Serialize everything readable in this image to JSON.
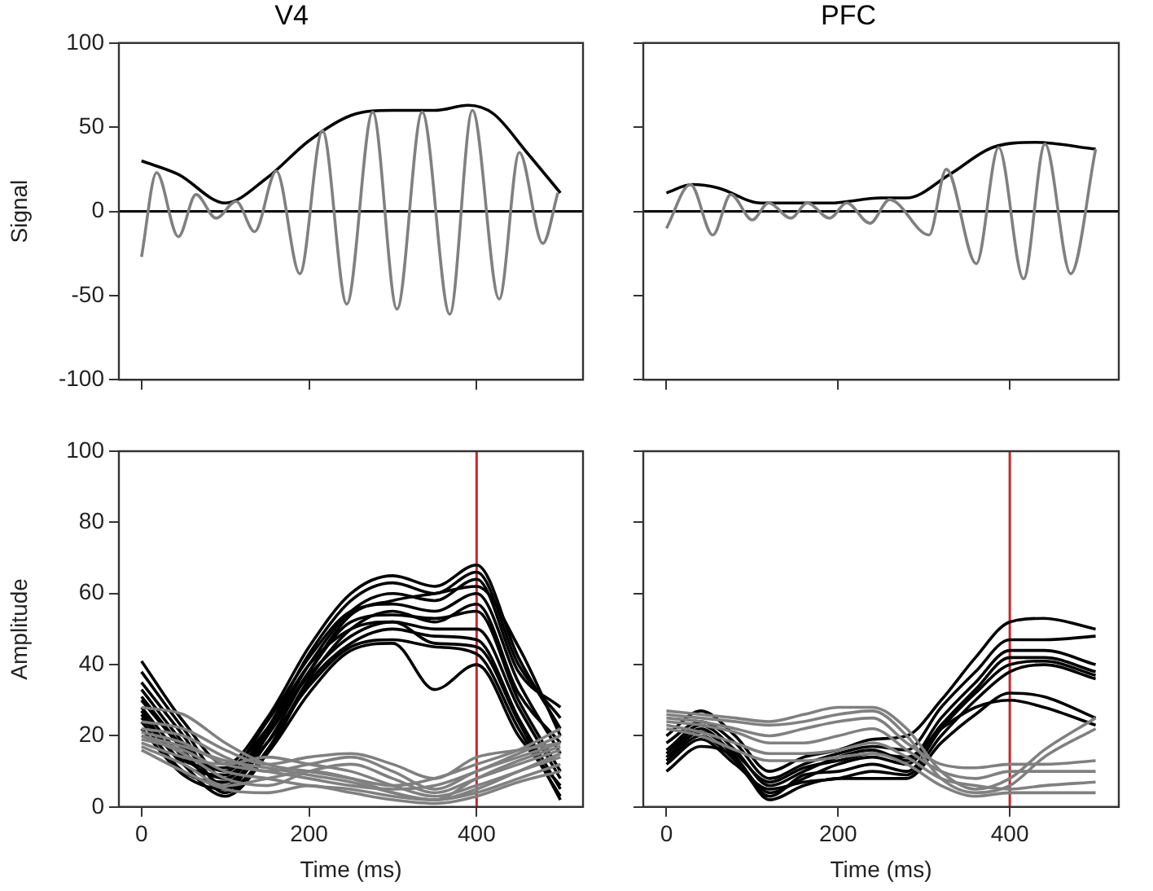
{
  "chart_data": [
    {
      "type": "line",
      "title": "V4",
      "ylabel": "Signal",
      "xlim": [
        -27,
        527
      ],
      "xticks": [
        0,
        200,
        400
      ],
      "ylim": [
        -100,
        100
      ],
      "yticks": [
        -100,
        -50,
        0,
        50,
        100
      ],
      "tick_labels": "y",
      "grid": false,
      "legend": false,
      "marker": "none",
      "line_style": "solid",
      "ref_lines": [
        {
          "axis": "y",
          "value": 0,
          "color": "#000000"
        }
      ],
      "series": [
        {
          "color": "#808080",
          "x": [
            0,
            18,
            44,
            65,
            89,
            113,
            135,
            161,
            189,
            216,
            245,
            276,
            305,
            335,
            368,
            395,
            427,
            451,
            479,
            497
          ],
          "values": [
            -27,
            23,
            -15,
            10,
            -4,
            6,
            -12,
            24,
            -37,
            48,
            -55,
            59,
            -58,
            59,
            -61,
            60,
            -52,
            35,
            -19,
            11
          ]
        },
        {
          "color": "#000000",
          "x": [
            0,
            44,
            100,
            150,
            200,
            250,
            300,
            350,
            390,
            420,
            460,
            500
          ],
          "values": [
            30,
            22,
            5,
            20,
            42,
            57,
            60,
            60,
            63,
            58,
            35,
            11
          ]
        }
      ]
    },
    {
      "type": "line",
      "title": "PFC",
      "xlim": [
        -27,
        527
      ],
      "xticks": [
        0,
        200,
        400
      ],
      "ylim": [
        -100,
        100
      ],
      "yticks": [
        -100,
        -50,
        0,
        50,
        100
      ],
      "tick_labels": false,
      "grid": false,
      "legend": false,
      "marker": "none",
      "line_style": "solid",
      "ref_lines": [
        {
          "axis": "y",
          "value": 0,
          "color": "#000000"
        }
      ],
      "series": [
        {
          "color": "#808080",
          "x": [
            0,
            28,
            54,
            75,
            100,
            119,
            145,
            164,
            190,
            210,
            237,
            260,
            306,
            326,
            361,
            387,
            416,
            441,
            471,
            500
          ],
          "values": [
            -10,
            16,
            -14,
            10,
            -5,
            5,
            -4,
            5,
            -4,
            5,
            -7,
            7,
            -14,
            25,
            -31,
            38,
            -40,
            40,
            -37,
            37
          ]
        },
        {
          "color": "#000000",
          "x": [
            0,
            30,
            60,
            110,
            190,
            250,
            280,
            330,
            380,
            430,
            500
          ],
          "values": [
            11,
            16,
            14,
            5,
            5,
            8,
            8,
            22,
            38,
            41,
            37
          ]
        }
      ]
    },
    {
      "type": "line",
      "ylabel": "Amplitude",
      "xlabel": "Time (ms)",
      "xlim": [
        -27,
        527
      ],
      "xticks": [
        0,
        200,
        400
      ],
      "ylim": [
        0,
        100
      ],
      "yticks": [
        0,
        20,
        40,
        60,
        80,
        100
      ],
      "grid": false,
      "legend": false,
      "marker": "none",
      "line_style": "solid",
      "ref_lines": [
        {
          "axis": "x",
          "value": 400,
          "color": "#c62828"
        }
      ],
      "x": [
        0,
        50,
        100,
        150,
        200,
        250,
        300,
        350,
        400,
        450,
        500
      ],
      "series": [
        {
          "color": "#808080",
          "values": [
            28,
            26,
            18,
            12,
            10,
            8,
            6,
            8,
            12,
            16,
            22
          ]
        },
        {
          "color": "#808080",
          "values": [
            22,
            20,
            14,
            10,
            12,
            14,
            10,
            5,
            10,
            14,
            18
          ]
        },
        {
          "color": "#808080",
          "values": [
            20,
            15,
            8,
            6,
            10,
            12,
            8,
            4,
            8,
            12,
            16
          ]
        },
        {
          "color": "#808080",
          "values": [
            18,
            14,
            12,
            14,
            12,
            10,
            6,
            3,
            6,
            10,
            14
          ]
        },
        {
          "color": "#808080",
          "values": [
            17,
            12,
            6,
            8,
            10,
            8,
            4,
            2,
            4,
            8,
            12
          ]
        },
        {
          "color": "#808080",
          "values": [
            19,
            16,
            10,
            8,
            6,
            5,
            3,
            2,
            5,
            10,
            15
          ]
        },
        {
          "color": "#808080",
          "values": [
            21,
            18,
            12,
            10,
            8,
            6,
            5,
            6,
            10,
            15,
            20
          ]
        },
        {
          "color": "#808080",
          "values": [
            24,
            22,
            16,
            12,
            14,
            15,
            12,
            8,
            14,
            16,
            18
          ]
        },
        {
          "color": "#808080",
          "values": [
            16,
            10,
            5,
            4,
            6,
            4,
            2,
            1,
            3,
            7,
            10
          ]
        },
        {
          "color": "#808080",
          "values": [
            20,
            17,
            13,
            11,
            9,
            7,
            4,
            2,
            8,
            13,
            17
          ]
        },
        {
          "color": "#000000",
          "values": [
            41,
            24,
            12,
            25,
            45,
            60,
            65,
            62,
            68,
            42,
            22
          ]
        },
        {
          "color": "#000000",
          "values": [
            38,
            22,
            8,
            22,
            43,
            58,
            63,
            60,
            66,
            40,
            25
          ]
        },
        {
          "color": "#000000",
          "values": [
            35,
            20,
            5,
            20,
            40,
            55,
            60,
            58,
            64,
            38,
            28
          ]
        },
        {
          "color": "#000000",
          "values": [
            33,
            18,
            6,
            18,
            38,
            54,
            58,
            60,
            62,
            45,
            20
          ]
        },
        {
          "color": "#000000",
          "values": [
            31,
            17,
            10,
            24,
            42,
            55,
            57,
            55,
            60,
            35,
            15
          ]
        },
        {
          "color": "#000000",
          "values": [
            30,
            16,
            4,
            16,
            36,
            50,
            55,
            52,
            57,
            32,
            18
          ]
        },
        {
          "color": "#000000",
          "values": [
            28,
            14,
            8,
            20,
            38,
            52,
            54,
            53,
            55,
            30,
            10
          ]
        },
        {
          "color": "#000000",
          "values": [
            27,
            12,
            9,
            21,
            37,
            48,
            52,
            50,
            50,
            28,
            8
          ]
        },
        {
          "color": "#000000",
          "values": [
            26,
            12,
            3,
            15,
            35,
            46,
            50,
            48,
            47,
            25,
            5
          ]
        },
        {
          "color": "#000000",
          "values": [
            24,
            10,
            7,
            18,
            34,
            45,
            47,
            45,
            43,
            22,
            3
          ]
        },
        {
          "color": "#000000",
          "values": [
            22,
            9,
            5,
            15,
            32,
            44,
            46,
            33,
            40,
            20,
            6
          ]
        },
        {
          "color": "#000000",
          "values": [
            25,
            13,
            11,
            22,
            40,
            50,
            52,
            46,
            45,
            24,
            2
          ]
        }
      ]
    },
    {
      "type": "line",
      "xlabel": "Time (ms)",
      "xlim": [
        -27,
        527
      ],
      "xticks": [
        0,
        200,
        400
      ],
      "ylim": [
        0,
        100
      ],
      "yticks": [
        0,
        20,
        40,
        60,
        80,
        100
      ],
      "tick_labels": "x",
      "grid": false,
      "legend": false,
      "marker": "none",
      "line_style": "solid",
      "ref_lines": [
        {
          "axis": "x",
          "value": 400,
          "color": "#c62828"
        }
      ],
      "x": [
        0,
        40,
        80,
        120,
        160,
        200,
        240,
        280,
        320,
        360,
        400,
        440,
        500
      ],
      "series": [
        {
          "color": "#808080",
          "values": [
            27,
            26,
            25,
            24,
            26,
            28,
            28,
            22,
            10,
            5,
            8,
            16,
            25
          ]
        },
        {
          "color": "#808080",
          "values": [
            26,
            25,
            24,
            23,
            24,
            26,
            27,
            20,
            8,
            4,
            6,
            14,
            22
          ]
        },
        {
          "color": "#808080",
          "values": [
            25,
            24,
            22,
            20,
            22,
            24,
            25,
            18,
            12,
            11,
            12,
            12,
            13
          ]
        },
        {
          "color": "#808080",
          "values": [
            24,
            23,
            21,
            18,
            18,
            20,
            22,
            16,
            10,
            8,
            10,
            10,
            10
          ]
        },
        {
          "color": "#808080",
          "values": [
            23,
            21,
            18,
            15,
            15,
            16,
            18,
            14,
            8,
            6,
            5,
            6,
            7
          ]
        },
        {
          "color": "#808080",
          "values": [
            22,
            20,
            16,
            13,
            13,
            14,
            15,
            12,
            6,
            3,
            4,
            4,
            4
          ]
        },
        {
          "color": "#000000",
          "values": [
            20,
            27,
            20,
            10,
            14,
            16,
            19,
            20,
            30,
            42,
            52,
            53,
            50
          ]
        },
        {
          "color": "#000000",
          "values": [
            18,
            24,
            18,
            8,
            12,
            15,
            17,
            16,
            28,
            38,
            47,
            47,
            48
          ]
        },
        {
          "color": "#000000",
          "values": [
            16,
            23,
            16,
            6,
            10,
            14,
            16,
            13,
            25,
            35,
            44,
            44,
            40
          ]
        },
        {
          "color": "#000000",
          "values": [
            15,
            22,
            14,
            4,
            8,
            12,
            14,
            12,
            23,
            33,
            42,
            42,
            38
          ]
        },
        {
          "color": "#000000",
          "values": [
            13,
            20,
            13,
            3,
            9,
            10,
            12,
            10,
            22,
            32,
            40,
            41,
            37
          ]
        },
        {
          "color": "#000000",
          "values": [
            12,
            19,
            12,
            5,
            7,
            8,
            10,
            9,
            20,
            30,
            38,
            40,
            36
          ]
        },
        {
          "color": "#000000",
          "values": [
            10,
            17,
            14,
            2,
            6,
            8,
            8,
            8,
            18,
            26,
            32,
            31,
            25
          ]
        },
        {
          "color": "#000000",
          "values": [
            14,
            21,
            15,
            7,
            11,
            13,
            15,
            14,
            22,
            28,
            30,
            28,
            23
          ]
        }
      ]
    }
  ]
}
